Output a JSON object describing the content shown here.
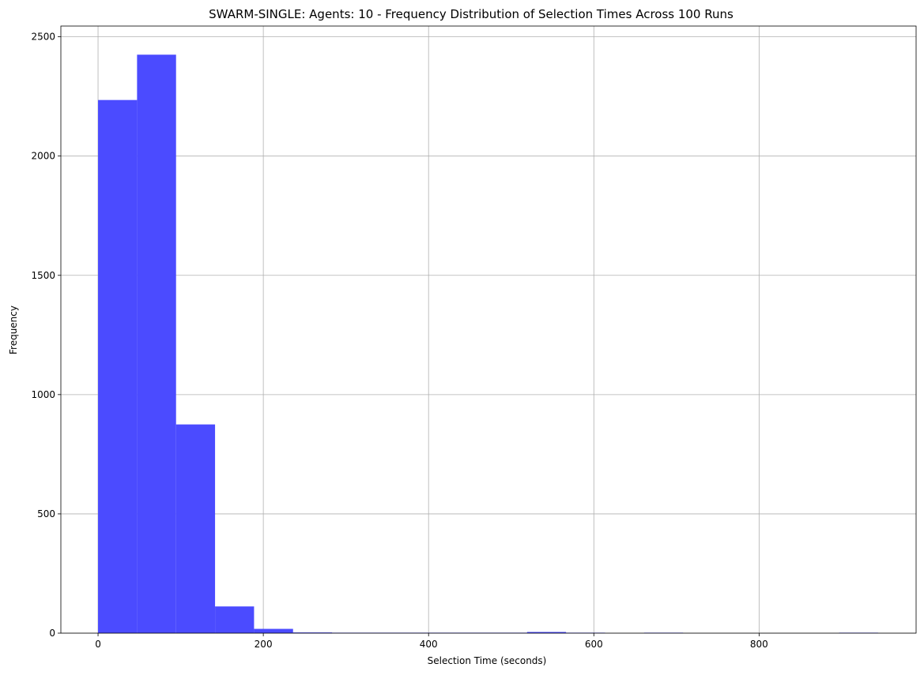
{
  "chart_data": {
    "type": "bar",
    "title": "SWARM-SINGLE: Agents: 10 - Frequency Distribution of Selection Times Across 100 Runs",
    "xlabel": "Selection Time (seconds)",
    "ylabel": "Frequency",
    "bin_edges": [
      0,
      47.2,
      94.4,
      141.6,
      188.8,
      236.0,
      283.2,
      330.4,
      377.6,
      424.8,
      472.0,
      519.2,
      566.4,
      613.6,
      660.8,
      708.0,
      755.2,
      802.4,
      849.6,
      896.8,
      944.0
    ],
    "values": [
      2235,
      2425,
      875,
      112,
      18,
      3,
      2,
      2,
      2,
      2,
      2,
      5,
      2,
      0,
      2,
      0,
      0,
      0,
      0,
      2
    ],
    "xlim": [
      -45,
      990
    ],
    "ylim": [
      0,
      2545
    ],
    "xticks": [
      0,
      200,
      400,
      600,
      800
    ],
    "xtick_labels": [
      "0",
      "200",
      "400",
      "600",
      "800"
    ],
    "yticks": [
      0,
      500,
      1000,
      1500,
      2000,
      2500
    ],
    "ytick_labels": [
      "0",
      "500",
      "1000",
      "1500",
      "2000",
      "2500"
    ],
    "grid": true,
    "bar_color": "#4b4bff"
  }
}
